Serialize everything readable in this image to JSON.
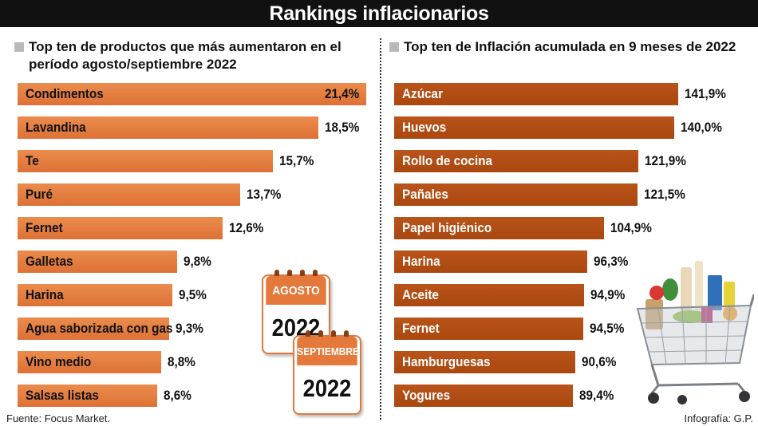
{
  "title": "Rankings inflacionarios",
  "left_panel": {
    "title": "Top ten de productos que más aumentaron en el período agosto/septiembre 2022"
  },
  "right_panel": {
    "title": "Top ten de Inflación acumulada en 9 meses de 2022"
  },
  "chart_data": [
    {
      "type": "bar",
      "orientation": "horizontal",
      "title": "Top ten de productos que más aumentaron en el período agosto/septiembre 2022",
      "categories": [
        "Condimentos",
        "Lavandina",
        "Te",
        "Puré",
        "Fernet",
        "Galletas",
        "Harina",
        "Agua saborizada con gas",
        "Vino medio",
        "Salsas listas"
      ],
      "values": [
        21.4,
        18.5,
        15.7,
        13.7,
        12.6,
        9.8,
        9.5,
        9.3,
        8.8,
        8.6
      ],
      "labels": [
        "21,4%",
        "18,5%",
        "15,7%",
        "13,7%",
        "12,6%",
        "9,8%",
        "9,5%",
        "9,3%",
        "8,8%",
        "8,6%"
      ],
      "unit": "%",
      "color": "#e2773b"
    },
    {
      "type": "bar",
      "orientation": "horizontal",
      "title": "Top ten de Inflación acumulada en 9 meses de 2022",
      "categories": [
        "Azúcar",
        "Huevos",
        "Rollo de cocina",
        "Pañales",
        "Papel higiénico",
        "Harina",
        "Aceite",
        "Fernet",
        "Hamburguesas",
        "Yogures"
      ],
      "values": [
        141.9,
        140.0,
        121.9,
        121.5,
        104.9,
        96.3,
        94.9,
        94.5,
        90.6,
        89.4
      ],
      "labels": [
        "141,9%",
        "140,0%",
        "121,9%",
        "121,5%",
        "104,9%",
        "96,3%",
        "94,9%",
        "94,5%",
        "90,6%",
        "89,4%"
      ],
      "unit": "%",
      "color": "#ad4c12"
    }
  ],
  "calendars": [
    {
      "month": "AGOSTO",
      "year": "2022"
    },
    {
      "month": "SEPTIEMBRE",
      "year": "2022"
    }
  ],
  "footer": {
    "source": "Fuente: Focus Market.",
    "credit": "Infografía: G.P."
  },
  "colors": {
    "left_bar": "#e2773b",
    "right_bar": "#ad4c12",
    "title_bg": "#111111",
    "legend_square": "#b9b9b9"
  },
  "icons": {
    "illustration": "shopping-cart-with-groceries-icon"
  }
}
